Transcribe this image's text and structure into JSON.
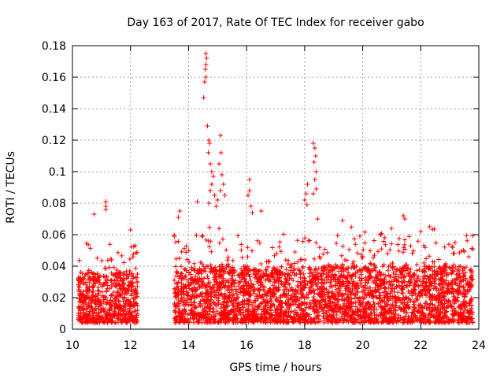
{
  "chart_data": {
    "type": "scatter",
    "title": "Day 163 of 2017, Rate Of TEC Index for receiver gabo",
    "xlabel": "GPS time / hours",
    "ylabel": "ROTI / TECUs",
    "xlim": [
      10,
      24
    ],
    "ylim": [
      0,
      0.18
    ],
    "xticks": [
      "10",
      "12",
      "14",
      "16",
      "18",
      "20",
      "22",
      "24"
    ],
    "yticks": [
      "0",
      "0.02",
      "0.04",
      "0.06",
      "0.08",
      "0.1",
      "0.12",
      "0.14",
      "0.16",
      "0.18"
    ],
    "grid": true,
    "marker": "+",
    "color": "#ff0000",
    "segments": [
      {
        "x_start": 10.2,
        "x_end": 12.25,
        "base": 0.018,
        "spread": 0.014,
        "peak": 0.06
      },
      {
        "x_start": 13.5,
        "x_end": 23.8,
        "base": 0.02,
        "spread": 0.016,
        "peak": 0.065
      }
    ],
    "highlights": [
      {
        "x": 11.15,
        "y": 0.081
      },
      {
        "x": 11.15,
        "y": 0.078
      },
      {
        "x": 11.15,
        "y": 0.076
      },
      {
        "x": 10.75,
        "y": 0.073
      },
      {
        "x": 12.0,
        "y": 0.063
      },
      {
        "x": 14.6,
        "y": 0.175
      },
      {
        "x": 14.62,
        "y": 0.172
      },
      {
        "x": 14.6,
        "y": 0.168
      },
      {
        "x": 14.58,
        "y": 0.165
      },
      {
        "x": 14.6,
        "y": 0.16
      },
      {
        "x": 14.55,
        "y": 0.157
      },
      {
        "x": 14.52,
        "y": 0.147
      },
      {
        "x": 14.65,
        "y": 0.129
      },
      {
        "x": 14.7,
        "y": 0.12
      },
      {
        "x": 14.72,
        "y": 0.118
      },
      {
        "x": 14.68,
        "y": 0.112
      },
      {
        "x": 14.75,
        "y": 0.105
      },
      {
        "x": 14.8,
        "y": 0.1
      },
      {
        "x": 14.85,
        "y": 0.097
      },
      {
        "x": 14.8,
        "y": 0.092
      },
      {
        "x": 14.75,
        "y": 0.088
      },
      {
        "x": 14.9,
        "y": 0.085
      },
      {
        "x": 14.7,
        "y": 0.08
      },
      {
        "x": 14.3,
        "y": 0.081
      },
      {
        "x": 15.1,
        "y": 0.123
      },
      {
        "x": 15.12,
        "y": 0.112
      },
      {
        "x": 15.05,
        "y": 0.105
      },
      {
        "x": 15.15,
        "y": 0.098
      },
      {
        "x": 15.2,
        "y": 0.092
      },
      {
        "x": 15.1,
        "y": 0.088
      },
      {
        "x": 15.25,
        "y": 0.085
      },
      {
        "x": 15.0,
        "y": 0.082
      },
      {
        "x": 14.95,
        "y": 0.078
      },
      {
        "x": 16.1,
        "y": 0.095
      },
      {
        "x": 16.1,
        "y": 0.088
      },
      {
        "x": 16.05,
        "y": 0.085
      },
      {
        "x": 16.15,
        "y": 0.078
      },
      {
        "x": 16.2,
        "y": 0.074
      },
      {
        "x": 16.5,
        "y": 0.075
      },
      {
        "x": 13.7,
        "y": 0.075
      },
      {
        "x": 13.65,
        "y": 0.071
      },
      {
        "x": 18.3,
        "y": 0.118
      },
      {
        "x": 18.35,
        "y": 0.115
      },
      {
        "x": 18.38,
        "y": 0.11
      },
      {
        "x": 18.32,
        "y": 0.106
      },
      {
        "x": 18.4,
        "y": 0.1
      },
      {
        "x": 18.35,
        "y": 0.095
      },
      {
        "x": 18.4,
        "y": 0.089
      },
      {
        "x": 18.3,
        "y": 0.086
      },
      {
        "x": 18.1,
        "y": 0.092
      },
      {
        "x": 18.05,
        "y": 0.086
      },
      {
        "x": 18.0,
        "y": 0.082
      },
      {
        "x": 18.08,
        "y": 0.079
      },
      {
        "x": 18.45,
        "y": 0.07
      },
      {
        "x": 19.3,
        "y": 0.069
      },
      {
        "x": 21.4,
        "y": 0.072
      },
      {
        "x": 21.45,
        "y": 0.07
      },
      {
        "x": 22.3,
        "y": 0.065
      },
      {
        "x": 22.0,
        "y": 0.062
      },
      {
        "x": 20.6,
        "y": 0.06
      },
      {
        "x": 23.1,
        "y": 0.052
      },
      {
        "x": 19.9,
        "y": 0.059
      }
    ]
  }
}
